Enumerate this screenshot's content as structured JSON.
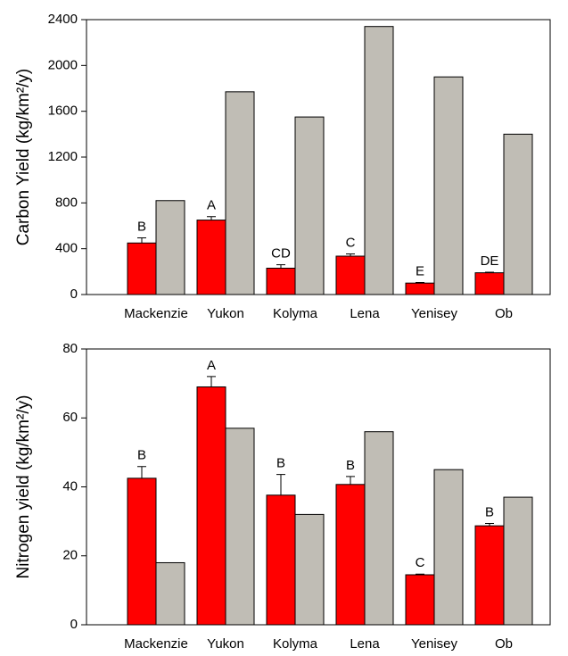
{
  "chart_data": [
    {
      "type": "bar",
      "ylabel": "Carbon Yield (kg/km²/y)",
      "categories": [
        "Mackenzie",
        "Yukon",
        "Kolyma",
        "Lena",
        "Yenisey",
        "Ob"
      ],
      "series": [
        {
          "color": "#ff0000",
          "values": [
            450,
            650,
            230,
            335,
            100,
            190
          ],
          "errors": [
            45,
            30,
            30,
            20,
            5,
            5
          ],
          "letters": [
            "B",
            "A",
            "CD",
            "C",
            "E",
            "DE"
          ]
        },
        {
          "color": "#c0bdb5",
          "values": [
            820,
            1770,
            1550,
            2340,
            1900,
            1400
          ]
        }
      ],
      "ylim": [
        0,
        2400
      ],
      "yticks": [
        0,
        400,
        800,
        1200,
        1600,
        2000,
        2400
      ]
    },
    {
      "type": "bar",
      "ylabel": "Nitrogen yield (kg/km²/y)",
      "categories": [
        "Mackenzie",
        "Yukon",
        "Kolyma",
        "Lena",
        "Yenisey",
        "Ob"
      ],
      "series": [
        {
          "color": "#ff0000",
          "values": [
            42.5,
            69,
            37.6,
            40.7,
            14.5,
            28.7
          ],
          "errors": [
            3.4,
            3,
            6,
            2.3,
            0.2,
            0.7
          ],
          "letters": [
            "B",
            "A",
            "B",
            "B",
            "C",
            "B"
          ]
        },
        {
          "color": "#c0bdb5",
          "values": [
            18,
            57,
            32,
            56,
            45,
            37
          ]
        }
      ],
      "ylim": [
        0,
        80
      ],
      "yticks": [
        0,
        20,
        40,
        60,
        80
      ]
    }
  ]
}
